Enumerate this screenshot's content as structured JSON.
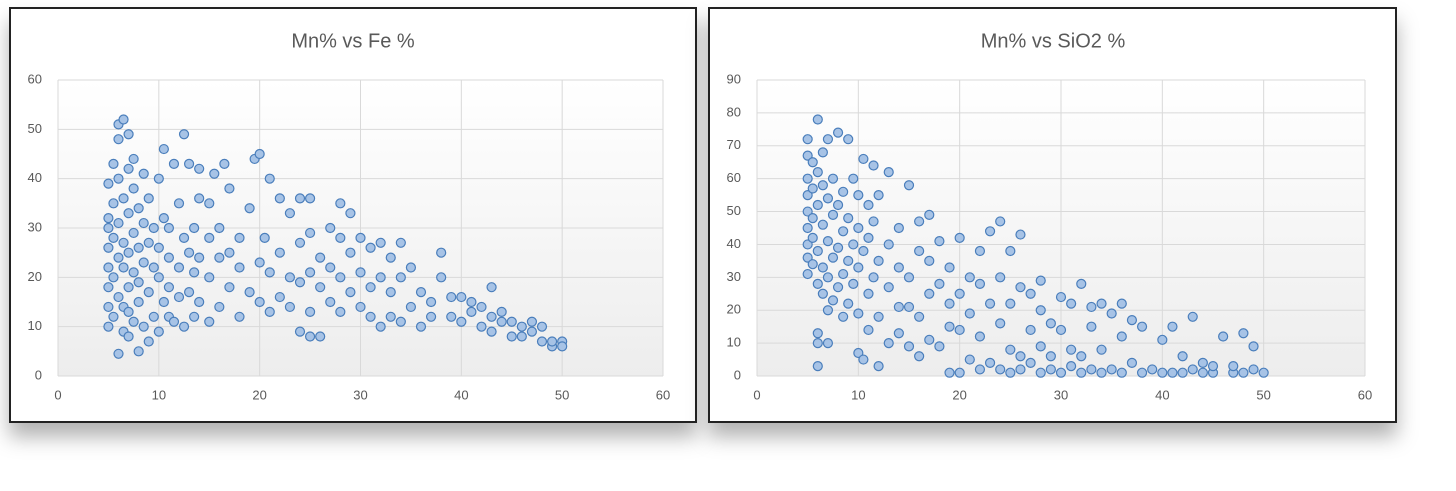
{
  "chart_data": [
    {
      "type": "scatter",
      "title": "Mn% vs Fe %",
      "color": "#a7c3e6",
      "grid": true,
      "xlim": [
        0,
        60
      ],
      "xticks": [
        0,
        10,
        20,
        30,
        40,
        50,
        60
      ],
      "ylim": [
        0,
        60
      ],
      "yticks": [
        0,
        10,
        20,
        30,
        40,
        50,
        60
      ],
      "x": [
        5,
        5,
        5,
        5,
        5,
        5,
        5,
        5,
        5.5,
        5.5,
        5.5,
        5.5,
        5.5,
        6,
        6,
        6,
        6,
        6,
        6,
        6,
        6.5,
        6.5,
        6.5,
        6.5,
        6.5,
        6.5,
        7,
        7,
        7,
        7,
        7,
        7,
        7,
        7.5,
        7.5,
        7.5,
        7.5,
        7.5,
        8,
        8,
        8,
        8,
        8,
        8.5,
        8.5,
        8.5,
        8.5,
        9,
        9,
        9,
        9,
        9.5,
        9.5,
        9.5,
        10,
        10,
        10,
        10,
        10.5,
        10.5,
        10.5,
        11,
        11,
        11,
        11,
        11.5,
        11.5,
        12,
        12,
        12,
        12.5,
        12.5,
        12.5,
        13,
        13,
        13,
        13.5,
        13.5,
        13.5,
        14,
        14,
        14,
        14,
        15,
        15,
        15,
        15,
        15.5,
        16,
        16,
        16,
        16.5,
        17,
        17,
        17,
        18,
        18,
        18,
        19,
        19,
        19.5,
        20,
        20,
        20,
        20.5,
        21,
        21,
        21,
        22,
        22,
        22,
        23,
        23,
        23,
        24,
        24,
        24,
        24,
        25,
        25,
        25,
        25,
        25,
        26,
        26,
        26,
        27,
        27,
        27,
        28,
        28,
        28,
        28,
        29,
        29,
        29,
        30,
        30,
        30,
        31,
        31,
        31,
        32,
        32,
        32,
        33,
        33,
        33,
        34,
        34,
        34,
        35,
        35,
        36,
        36,
        37,
        37,
        38,
        38,
        39,
        39,
        40,
        40,
        41,
        41,
        42,
        42,
        43,
        43,
        43,
        44,
        44,
        45,
        45,
        46,
        46,
        47,
        47,
        48,
        48,
        49,
        49,
        50,
        50
      ],
      "values": [
        10,
        14,
        18,
        22,
        26,
        30,
        32,
        39,
        12,
        20,
        28,
        35,
        43,
        4.5,
        16,
        24,
        31,
        40,
        48,
        51,
        9,
        14,
        22,
        27,
        36,
        52,
        8,
        13,
        18,
        25,
        33,
        42,
        49,
        11,
        21,
        29,
        38,
        44,
        5,
        15,
        19,
        26,
        34,
        10,
        23,
        31,
        41,
        7,
        17,
        27,
        36,
        12,
        22,
        30,
        9,
        20,
        26,
        40,
        15,
        32,
        46,
        12,
        18,
        24,
        30,
        11,
        43,
        16,
        22,
        35,
        10,
        28,
        49,
        17,
        25,
        43,
        12,
        21,
        30,
        15,
        24,
        36,
        42,
        11,
        20,
        28,
        35,
        41,
        14,
        24,
        30,
        43,
        18,
        25,
        38,
        12,
        22,
        28,
        17,
        34,
        44,
        15,
        23,
        45,
        28,
        13,
        21,
        40,
        16,
        25,
        36,
        14,
        20,
        33,
        9,
        19,
        27,
        36,
        8,
        13,
        21,
        29,
        36,
        8,
        18,
        24,
        15,
        22,
        30,
        13,
        20,
        28,
        35,
        17,
        25,
        33,
        14,
        21,
        28,
        12,
        18,
        26,
        10,
        20,
        27,
        12,
        17,
        24,
        11,
        20,
        27,
        14,
        22,
        10,
        17,
        12,
        15,
        20,
        25,
        12,
        16,
        11,
        16,
        13,
        15,
        10,
        14,
        9,
        12,
        18,
        11,
        13,
        8,
        11,
        10,
        8,
        9,
        11,
        7,
        10,
        6,
        7,
        7,
        6
      ]
    },
    {
      "type": "scatter",
      "title": "Mn% vs SiO2 %",
      "color": "#a7c3e6",
      "grid": true,
      "xlim": [
        0,
        60
      ],
      "xticks": [
        0,
        10,
        20,
        30,
        40,
        50,
        60
      ],
      "ylim": [
        0,
        90
      ],
      "yticks": [
        0,
        10,
        20,
        30,
        40,
        50,
        60,
        70,
        80,
        90
      ],
      "x": [
        5,
        5,
        5,
        5,
        5,
        5,
        5,
        5,
        5,
        5.5,
        5.5,
        5.5,
        5.5,
        5.5,
        6,
        6,
        6,
        6,
        6,
        6,
        6,
        6,
        6.5,
        6.5,
        6.5,
        6.5,
        6.5,
        7,
        7,
        7,
        7,
        7,
        7,
        7.5,
        7.5,
        7.5,
        7.5,
        8,
        8,
        8,
        8,
        8.5,
        8.5,
        8.5,
        8.5,
        9,
        9,
        9,
        9,
        9.5,
        9.5,
        9.5,
        10,
        10,
        10,
        10,
        10,
        10.5,
        10.5,
        10.5,
        11,
        11,
        11,
        11,
        11.5,
        11.5,
        11.5,
        12,
        12,
        12,
        12,
        13,
        13,
        13,
        13,
        14,
        14,
        14,
        14,
        15,
        15,
        15,
        15,
        16,
        16,
        16,
        16,
        17,
        17,
        17,
        17,
        18,
        18,
        18,
        19,
        19,
        19,
        19,
        20,
        20,
        20,
        20,
        21,
        21,
        21,
        22,
        22,
        22,
        22,
        23,
        23,
        23,
        24,
        24,
        24,
        24,
        25,
        25,
        25,
        25,
        26,
        26,
        26,
        26,
        27,
        27,
        27,
        28,
        28,
        28,
        28,
        29,
        29,
        29,
        30,
        30,
        30,
        31,
        31,
        31,
        32,
        32,
        32,
        33,
        33,
        33,
        34,
        34,
        34,
        35,
        35,
        36,
        36,
        36,
        37,
        37,
        38,
        38,
        39,
        40,
        40,
        41,
        41,
        42,
        42,
        43,
        43,
        44,
        44,
        45,
        45,
        46,
        47,
        47,
        48,
        48,
        49,
        49,
        50
      ],
      "values": [
        31,
        36,
        40,
        45,
        50,
        55,
        60,
        67,
        72,
        34,
        42,
        48,
        57,
        65,
        3,
        10,
        13,
        28,
        38,
        52,
        62,
        78,
        25,
        33,
        46,
        58,
        68,
        10,
        20,
        30,
        41,
        54,
        72,
        23,
        36,
        49,
        60,
        27,
        39,
        52,
        74,
        18,
        31,
        44,
        56,
        22,
        35,
        48,
        72,
        28,
        40,
        60,
        7,
        19,
        33,
        45,
        55,
        5,
        38,
        66,
        14,
        25,
        42,
        52,
        30,
        47,
        64,
        3,
        18,
        35,
        55,
        10,
        27,
        40,
        62,
        13,
        21,
        33,
        45,
        9,
        21,
        30,
        58,
        6,
        18,
        38,
        47,
        11,
        25,
        35,
        49,
        9,
        28,
        41,
        1,
        15,
        22,
        33,
        1,
        14,
        25,
        42,
        5,
        19,
        30,
        2,
        12,
        28,
        38,
        4,
        22,
        44,
        2,
        16,
        30,
        47,
        1,
        8,
        22,
        38,
        2,
        6,
        27,
        43,
        4,
        14,
        25,
        1,
        9,
        20,
        29,
        2,
        6,
        16,
        1,
        14,
        24,
        3,
        8,
        22,
        1,
        6,
        28,
        2,
        15,
        21,
        1,
        8,
        22,
        2,
        19,
        1,
        12,
        22,
        4,
        17,
        1,
        15,
        2,
        11,
        1,
        1,
        15,
        6,
        1,
        2,
        18,
        1,
        4,
        1,
        3,
        12,
        1,
        3,
        13,
        1,
        9,
        2,
        1
      ]
    }
  ]
}
